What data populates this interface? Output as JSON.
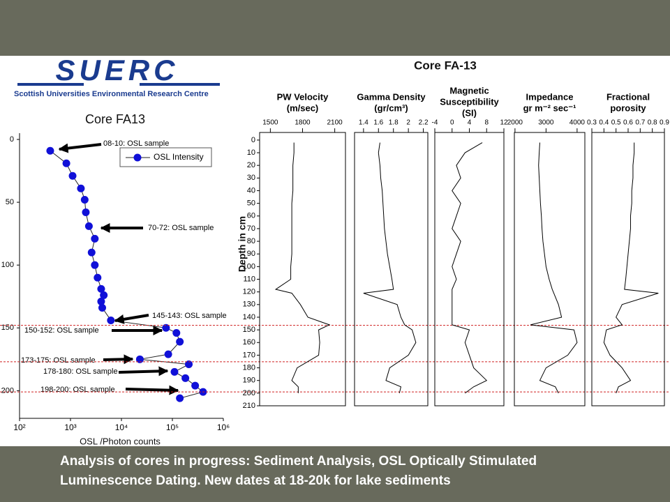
{
  "logo": {
    "text": "SUERC",
    "subtitle": "Scottish Universities Environmental Research Centre"
  },
  "caption": [
    "Analysis of cores in progress: Sediment Analysis, OSL Optically Stimulated",
    "Luminescence Dating.  New dates at 18-20k for lake sediments"
  ],
  "chart_data": [
    {
      "type": "scatter",
      "title": "Core FA13",
      "xlabel": "OSL /Photon counts",
      "xscale": "log",
      "xlim": [
        100,
        1000000
      ],
      "xticks": [
        {
          "value": 100,
          "label": "10²"
        },
        {
          "value": 1000,
          "label": "10³"
        },
        {
          "value": 10000,
          "label": "10⁴"
        },
        {
          "value": 100000,
          "label": "10⁵"
        },
        {
          "value": 1000000,
          "label": "10⁶"
        }
      ],
      "ylim": [
        -5,
        222
      ],
      "yticks": [
        0,
        50,
        100,
        150,
        200
      ],
      "legend": "upper right",
      "series": [
        {
          "name": "OSL Intensity",
          "color": "#1010d8",
          "x": [
            400,
            830,
            1100,
            1600,
            1900,
            2000,
            2300,
            3000,
            2600,
            3000,
            3400,
            4000,
            4500,
            4000,
            4200,
            6200,
            75000,
            120000,
            140000,
            83000,
            23000,
            210000,
            110000,
            180000,
            280000,
            400000,
            140000
          ],
          "y": [
            9,
            19,
            29,
            39,
            48,
            58,
            69,
            79,
            90,
            100,
            110,
            119,
            124,
            129,
            134,
            144,
            150,
            154,
            161,
            171,
            175,
            179,
            185,
            190,
            196,
            201,
            206
          ]
        }
      ],
      "annotations": [
        "08-10: OSL sample",
        "70-72: OSL sample",
        "145-143: OSL sample",
        "150-152: OSL sample",
        "173-175: OSL sample",
        "178-180: OSL sample",
        "198-200: OSL sample"
      ],
      "reference_depths": [
        148,
        177,
        201
      ]
    },
    {
      "type": "profile",
      "title": "Core FA-13",
      "ylabel": "Depth in cm",
      "ylim": [
        -6,
        210
      ],
      "yticks": [
        0,
        10,
        20,
        30,
        40,
        50,
        60,
        70,
        80,
        90,
        100,
        110,
        120,
        130,
        140,
        150,
        160,
        170,
        180,
        190,
        200,
        210
      ],
      "y": [
        2,
        10,
        20,
        30,
        40,
        50,
        60,
        70,
        80,
        90,
        100,
        110,
        118,
        121,
        130,
        140,
        146,
        150,
        160,
        170,
        180,
        190,
        195,
        200
      ],
      "color": "#000000",
      "panels": [
        {
          "title": [
            "PW Velocity",
            "(m/sec)"
          ],
          "xlim": [
            1400,
            2200
          ],
          "xticks": [
            1500,
            1800,
            2100
          ],
          "values": [
            1720,
            1720,
            1710,
            1710,
            1710,
            1700,
            1700,
            1700,
            1700,
            1700,
            1690,
            1690,
            1550,
            1700,
            1780,
            1850,
            2050,
            1950,
            1960,
            1950,
            1750,
            1700,
            1760,
            1760
          ]
        },
        {
          "title": [
            "Gamma Density",
            "(gr/cm³)"
          ],
          "xlim": [
            1.28,
            2.26
          ],
          "xticks": [
            1.4,
            1.6,
            1.8,
            2,
            2.2
          ],
          "values": [
            1.62,
            1.6,
            1.62,
            1.63,
            1.65,
            1.66,
            1.67,
            1.68,
            1.7,
            1.72,
            1.75,
            1.78,
            1.8,
            1.4,
            1.85,
            1.9,
            1.95,
            2.05,
            2.1,
            2.0,
            1.75,
            1.7,
            1.9,
            1.88
          ]
        },
        {
          "title": [
            "Magnetic",
            "Susceptibility",
            "(SI)"
          ],
          "xlim": [
            -4,
            12
          ],
          "xticks": [
            -4,
            0,
            4,
            8,
            12
          ],
          "values": [
            7,
            3,
            1,
            2,
            0,
            2,
            1,
            0,
            2,
            1,
            0,
            1,
            0,
            0,
            0,
            0,
            0,
            4,
            3,
            4,
            5,
            8,
            5,
            3
          ]
        },
        {
          "title": [
            "Impedance",
            "gr  m⁻² sec⁻¹"
          ],
          "xlim": [
            1980,
            4250
          ],
          "xticks": [
            2000,
            3000,
            4000
          ],
          "values": [
            2800,
            2780,
            2760,
            2780,
            2800,
            2820,
            2850,
            2870,
            2900,
            2950,
            3000,
            3100,
            3200,
            3250,
            3400,
            3500,
            2500,
            3900,
            4000,
            3700,
            3000,
            2800,
            3300,
            3400
          ]
        },
        {
          "title": [
            "Fractional",
            "porosity"
          ],
          "xlim": [
            0.3,
            0.9
          ],
          "xticks": [
            0.3,
            0.4,
            0.5,
            0.6,
            0.7,
            0.8,
            0.9
          ],
          "values": [
            0.65,
            0.65,
            0.64,
            0.64,
            0.63,
            0.63,
            0.62,
            0.62,
            0.61,
            0.6,
            0.59,
            0.58,
            0.57,
            0.85,
            0.55,
            0.5,
            0.55,
            0.42,
            0.4,
            0.45,
            0.55,
            0.62,
            0.52,
            0.5
          ]
        }
      ]
    }
  ]
}
